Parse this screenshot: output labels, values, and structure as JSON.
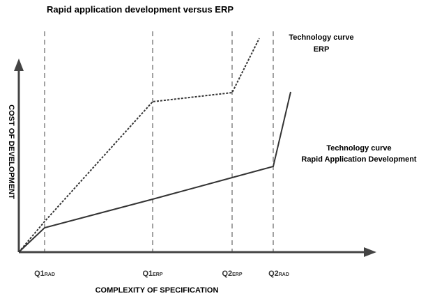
{
  "title": "Rapid application development versus ERP",
  "axes": {
    "y": "COST OF DEVELOPMENT",
    "x": "COMPLEXITY OF SPECIFICATION"
  },
  "curves": [
    {
      "lines": [
        "Technology curve",
        "ERP"
      ]
    },
    {
      "lines": [
        "Technology curve",
        "Rapid Application Development"
      ]
    }
  ],
  "markers": [
    {
      "main": "Q1",
      "sub": "RAD"
    },
    {
      "main": "Q1",
      "sub": "ERP"
    },
    {
      "main": "Q2",
      "sub": "ERP"
    },
    {
      "main": "Q2",
      "sub": "RAD"
    }
  ]
}
